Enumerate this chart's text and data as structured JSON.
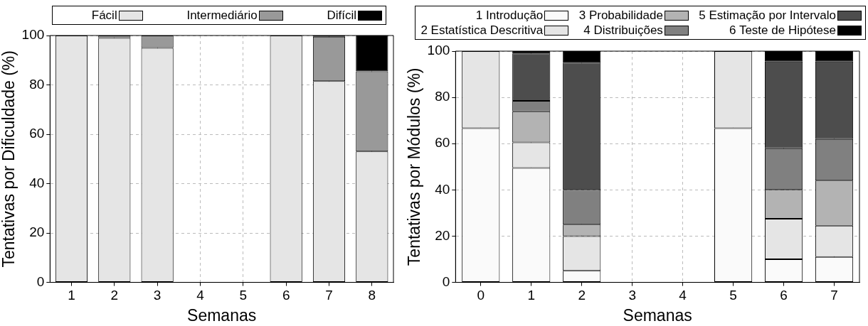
{
  "chart_data": [
    {
      "type": "bar",
      "stacked": true,
      "categories": [
        "1",
        "2",
        "3",
        "4",
        "5",
        "6",
        "7",
        "8"
      ],
      "xlabel": "Semanas",
      "ylabel": "Tentativas por Dificuldade (%)",
      "ylim": [
        0,
        100
      ],
      "yticks": [
        0,
        20,
        40,
        60,
        80,
        100
      ],
      "grid": true,
      "legend": "top",
      "series": [
        {
          "name": "Fácil",
          "color": "#e5e5e5",
          "values": [
            100,
            99,
            95,
            null,
            null,
            100,
            81.5,
            53
          ]
        },
        {
          "name": "Intermediário",
          "color": "#999999",
          "values": [
            0,
            1,
            5,
            null,
            null,
            0,
            18,
            32.5
          ]
        },
        {
          "name": "Difícil",
          "color": "#000000",
          "values": [
            0,
            0,
            0,
            null,
            null,
            0,
            0.5,
            14.5
          ]
        }
      ]
    },
    {
      "type": "bar",
      "stacked": true,
      "categories": [
        "0",
        "1",
        "2",
        "3",
        "4",
        "5",
        "6",
        "7"
      ],
      "xlabel": "Semanas",
      "ylabel": "Tentativas por Módulos (%)",
      "ylim": [
        0,
        100
      ],
      "yticks": [
        0,
        20,
        40,
        60,
        80,
        100
      ],
      "grid": true,
      "legend": "top",
      "series": [
        {
          "name": "1 Introdução",
          "color": "#fafafa",
          "values": [
            66.7,
            49.5,
            5,
            null,
            null,
            66.7,
            10,
            11
          ]
        },
        {
          "name": "2 Estatística Descritiva",
          "color": "#e5e5e5",
          "values": [
            33.3,
            11,
            15,
            null,
            null,
            33.3,
            17.5,
            13.5
          ]
        },
        {
          "name": "3 Probabilidade",
          "color": "#b3b3b3",
          "values": [
            0,
            13.5,
            5,
            null,
            null,
            0,
            12.5,
            19.5
          ]
        },
        {
          "name": "4 Distribuições",
          "color": "#808080",
          "values": [
            0,
            4.5,
            15,
            null,
            null,
            0,
            18,
            18
          ]
        },
        {
          "name": "5 Estimação por Intervalo",
          "color": "#4d4d4d",
          "values": [
            0,
            20.5,
            55,
            null,
            null,
            0,
            37.5,
            33.5
          ]
        },
        {
          "name": "6 Teste de Hipótese",
          "color": "#000000",
          "values": [
            0,
            1,
            5,
            null,
            null,
            0,
            4.5,
            4.5
          ]
        }
      ]
    }
  ]
}
